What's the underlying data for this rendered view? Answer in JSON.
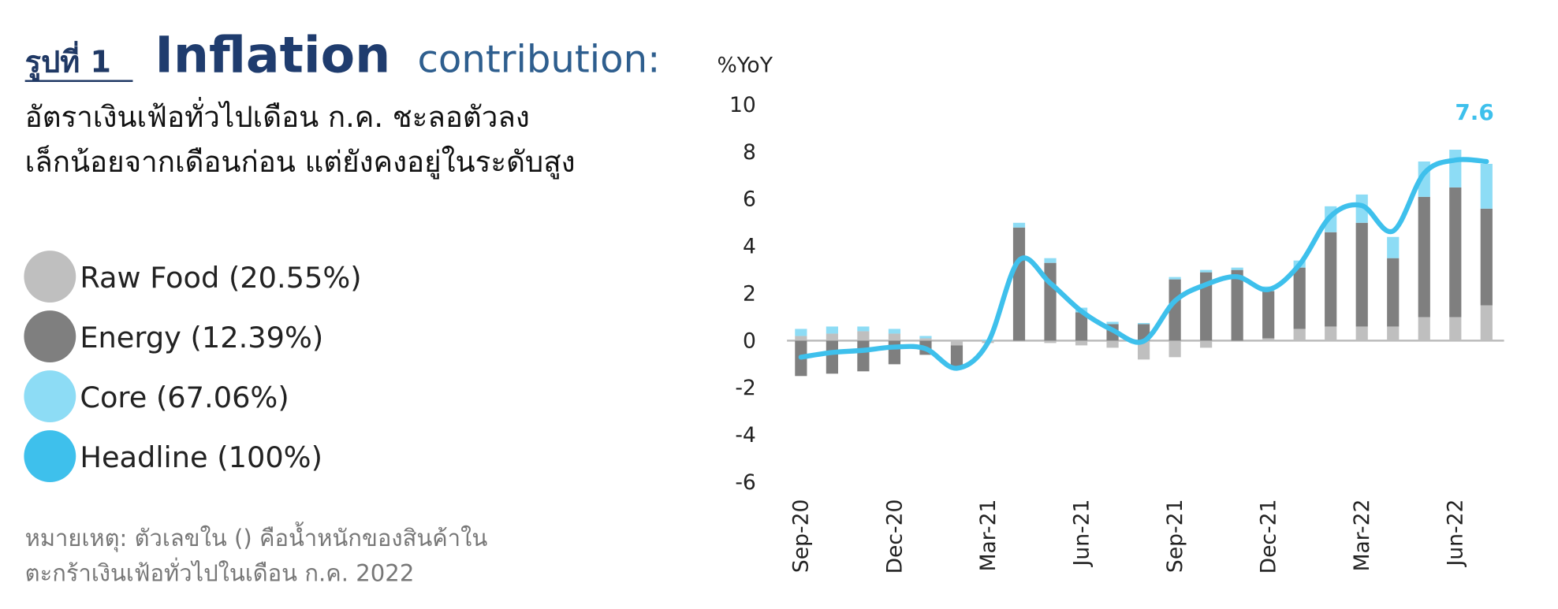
{
  "header": {
    "figure_label": "รูปที่ 1",
    "title": "Inflation",
    "title_rest": "contribution:"
  },
  "subtitle": [
    "อัตราเงินเฟ้อทั่วไปเดือน ก.ค. ชะลอตัวลง",
    "เล็กน้อยจากเดือนก่อน แต่ยังคงอยู่ในระดับสูง"
  ],
  "note": [
    "หมายเหตุ: ตัวเลขใน () คือน้ำหนักของสินค้าใน",
    "ตะกร้าเงินเฟ้อทั่วไปในเดือน ก.ค. 2022"
  ],
  "chart_data": {
    "type": "bar",
    "stacked": true,
    "y_label": "%YoY",
    "legend": "left",
    "categories": [
      "Sep-20",
      null,
      null,
      "Dec-20",
      null,
      null,
      "Mar-21",
      null,
      null,
      "Jun-21",
      null,
      null,
      "Sep-21",
      null,
      null,
      "Dec-21",
      null,
      null,
      "Mar-22",
      null,
      null,
      "Jun-22",
      null
    ],
    "series": [
      {
        "name": "Raw Food (20.55%)",
        "color": "#bfbfbf",
        "values": [
          0.2,
          0.3,
          0.4,
          0.3,
          0.1,
          -0.2,
          -0.1,
          0.0,
          -0.1,
          -0.2,
          -0.3,
          -0.8,
          -0.7,
          -0.3,
          0.0,
          0.1,
          0.5,
          0.6,
          0.6,
          0.6,
          1.0,
          1.0,
          1.5
        ]
      },
      {
        "name": "Energy (12.39%)",
        "color": "#7f7f7f",
        "values": [
          -1.5,
          -1.4,
          -1.3,
          -1.0,
          -0.6,
          -0.9,
          0.0,
          4.8,
          3.3,
          1.2,
          0.7,
          0.7,
          2.6,
          2.9,
          3.0,
          2.0,
          2.6,
          4.0,
          4.4,
          2.9,
          5.1,
          5.5,
          4.1
        ]
      },
      {
        "name": "Core (67.06%)",
        "color": "#8ddcf5",
        "values": [
          0.3,
          0.3,
          0.2,
          0.2,
          0.1,
          0.0,
          0.05,
          0.2,
          0.2,
          0.2,
          0.1,
          0.05,
          0.1,
          0.1,
          0.1,
          0.2,
          0.3,
          1.1,
          1.2,
          0.9,
          1.5,
          1.6,
          1.9
        ]
      },
      {
        "name": "Headline (100%)",
        "color": "#3ec0ec",
        "type": "line",
        "labeled_point": 22,
        "values": [
          -0.7,
          -0.5,
          -0.41,
          -0.27,
          -0.34,
          -1.17,
          -0.08,
          3.41,
          2.44,
          1.25,
          0.45,
          -0.02,
          1.68,
          2.38,
          2.71,
          2.17,
          3.23,
          5.28,
          5.73,
          4.65,
          7.1,
          7.66,
          7.6
        ]
      }
    ],
    "ylim": [
      -6,
      10
    ],
    "yticks": [
      -6,
      -4,
      -2,
      0,
      2,
      4,
      6,
      8,
      10
    ]
  }
}
